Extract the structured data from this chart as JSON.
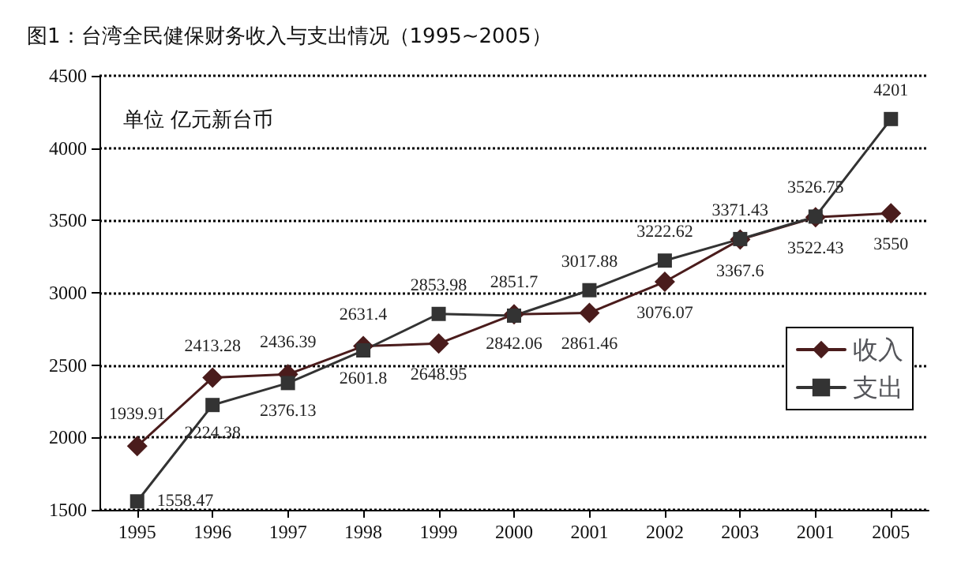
{
  "chart_data": {
    "type": "line",
    "title": "图1：台湾全民健保财务收入与支出情况（1995~2005）",
    "annotations": [
      "单位 亿元新台币"
    ],
    "categories": [
      "1995",
      "1996",
      "1997",
      "1998",
      "1999",
      "2000",
      "2001",
      "2002",
      "2003",
      "2001",
      "2005"
    ],
    "series": [
      {
        "name": "收入",
        "color": "#4a1c1c",
        "marker": "diamond",
        "values": [
          1939.91,
          2413.28,
          2436.39,
          2631.4,
          2648.95,
          2851.7,
          2861.46,
          3076.07,
          3367.6,
          3522.43,
          3550
        ]
      },
      {
        "name": "支出",
        "color": "#333333",
        "marker": "square",
        "values": [
          1558.47,
          2224.38,
          2376.13,
          2601.8,
          2853.98,
          2842.06,
          3017.88,
          3222.62,
          3371.43,
          3526.75,
          4201
        ]
      }
    ],
    "ylim": [
      1500,
      4500
    ],
    "yticks": [
      1500,
      2000,
      2500,
      3000,
      3500,
      4000,
      4500
    ],
    "grid": "y",
    "legend": "right",
    "data_labels": true,
    "line_style": "solid"
  }
}
